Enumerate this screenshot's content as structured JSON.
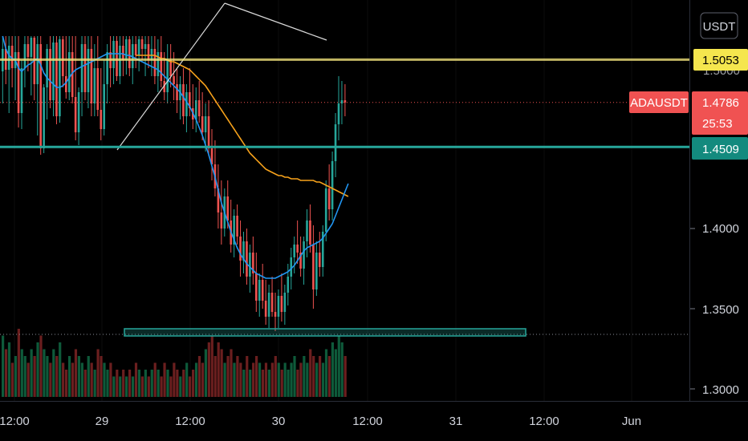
{
  "header": {
    "currency_button": "USDT"
  },
  "symbol": {
    "ticker": "ADAUSDT",
    "last_price": "1.4786",
    "countdown": "25:53"
  },
  "levels": {
    "resistance": "1.5053",
    "support": "1.4509",
    "partial_top_label": "1.5000"
  },
  "price_axis": {
    "ticks": [
      "1.4000",
      "1.3500",
      "1.3000"
    ]
  },
  "time_axis": {
    "ticks": [
      "12:00",
      "29",
      "12:00",
      "30",
      "12:00",
      "31",
      "12:00",
      "Jun"
    ]
  },
  "colors": {
    "up": "#26a69a",
    "down": "#ef5350",
    "ma_fast": "#2196f3",
    "ma_slow": "#f7a21b",
    "resistance_line": "#f0e27a",
    "support_line": "#26a69a",
    "trendline": "#d9d9d9",
    "last_price_tag": "#f05252"
  },
  "chart_data": {
    "type": "candlestick",
    "symbol": "ADAUSDT",
    "y_range": [
      1.29,
      1.53
    ],
    "price_ticks": [
      1.4,
      1.35,
      1.3
    ],
    "horizontal_levels": [
      1.5053,
      1.4509,
      1.334
    ],
    "last_price": 1.4786,
    "candles": [
      [
        1.498,
        1.52,
        1.478,
        1.512
      ],
      [
        1.512,
        1.52,
        1.49,
        1.499
      ],
      [
        1.499,
        1.52,
        1.472,
        1.514
      ],
      [
        1.514,
        1.52,
        1.488,
        1.5
      ],
      [
        1.5,
        1.52,
        1.48,
        1.51
      ],
      [
        1.51,
        1.52,
        1.463,
        1.472
      ],
      [
        1.472,
        1.505,
        1.462,
        1.5
      ],
      [
        1.5,
        1.52,
        1.488,
        1.515
      ],
      [
        1.515,
        1.52,
        1.498,
        1.507
      ],
      [
        1.507,
        1.52,
        1.483,
        1.519
      ],
      [
        1.519,
        1.52,
        1.48,
        1.49
      ],
      [
        1.49,
        1.52,
        1.458,
        1.515
      ],
      [
        1.515,
        1.52,
        1.446,
        1.45
      ],
      [
        1.45,
        1.49,
        1.447,
        1.488
      ],
      [
        1.488,
        1.515,
        1.468,
        1.512
      ],
      [
        1.512,
        1.52,
        1.475,
        1.48
      ],
      [
        1.48,
        1.52,
        1.47,
        1.516
      ],
      [
        1.516,
        1.52,
        1.465,
        1.47
      ],
      [
        1.47,
        1.52,
        1.466,
        1.518
      ],
      [
        1.518,
        1.52,
        1.488,
        1.495
      ],
      [
        1.495,
        1.52,
        1.481,
        1.485
      ],
      [
        1.485,
        1.52,
        1.48,
        1.51
      ],
      [
        1.51,
        1.52,
        1.478,
        1.482
      ],
      [
        1.482,
        1.52,
        1.455,
        1.46
      ],
      [
        1.46,
        1.488,
        1.452,
        1.485
      ],
      [
        1.485,
        1.52,
        1.47,
        1.515
      ],
      [
        1.515,
        1.52,
        1.48,
        1.485
      ],
      [
        1.485,
        1.52,
        1.475,
        1.512
      ],
      [
        1.512,
        1.52,
        1.47,
        1.478
      ],
      [
        1.478,
        1.515,
        1.47,
        1.5
      ],
      [
        1.5,
        1.52,
        1.47,
        1.474
      ],
      [
        1.474,
        1.5,
        1.455,
        1.462
      ],
      [
        1.462,
        1.505,
        1.458,
        1.49
      ],
      [
        1.49,
        1.515,
        1.478,
        1.51
      ],
      [
        1.51,
        1.52,
        1.488,
        1.5
      ],
      [
        1.5,
        1.52,
        1.49,
        1.517
      ],
      [
        1.517,
        1.52,
        1.492,
        1.495
      ],
      [
        1.495,
        1.52,
        1.49,
        1.514
      ],
      [
        1.514,
        1.52,
        1.495,
        1.505
      ],
      [
        1.505,
        1.52,
        1.496,
        1.518
      ],
      [
        1.518,
        1.52,
        1.495,
        1.5
      ],
      [
        1.5,
        1.52,
        1.49,
        1.515
      ],
      [
        1.515,
        1.52,
        1.5,
        1.508
      ],
      [
        1.508,
        1.52,
        1.498,
        1.518
      ],
      [
        1.518,
        1.52,
        1.505,
        1.512
      ],
      [
        1.512,
        1.52,
        1.495,
        1.515
      ],
      [
        1.515,
        1.52,
        1.5,
        1.505
      ],
      [
        1.505,
        1.52,
        1.495,
        1.512
      ],
      [
        1.512,
        1.52,
        1.49,
        1.495
      ],
      [
        1.495,
        1.518,
        1.485,
        1.51
      ],
      [
        1.51,
        1.52,
        1.488,
        1.492
      ],
      [
        1.492,
        1.51,
        1.48,
        1.485
      ],
      [
        1.485,
        1.515,
        1.478,
        1.505
      ],
      [
        1.505,
        1.515,
        1.488,
        1.495
      ],
      [
        1.495,
        1.51,
        1.48,
        1.49
      ],
      [
        1.49,
        1.5,
        1.472,
        1.48
      ],
      [
        1.48,
        1.495,
        1.468,
        1.49
      ],
      [
        1.49,
        1.5,
        1.465,
        1.47
      ],
      [
        1.47,
        1.49,
        1.46,
        1.485
      ],
      [
        1.485,
        1.5,
        1.47,
        1.475
      ],
      [
        1.475,
        1.49,
        1.462,
        1.468
      ],
      [
        1.468,
        1.488,
        1.46,
        1.48
      ],
      [
        1.48,
        1.492,
        1.466,
        1.47
      ],
      [
        1.47,
        1.485,
        1.455,
        1.46
      ],
      [
        1.46,
        1.478,
        1.448,
        1.47
      ],
      [
        1.47,
        1.48,
        1.445,
        1.45
      ],
      [
        1.45,
        1.462,
        1.43,
        1.44
      ],
      [
        1.44,
        1.455,
        1.42,
        1.425
      ],
      [
        1.425,
        1.44,
        1.4,
        1.41
      ],
      [
        1.41,
        1.43,
        1.39,
        1.4
      ],
      [
        1.4,
        1.425,
        1.395,
        1.42
      ],
      [
        1.42,
        1.43,
        1.4,
        1.405
      ],
      [
        1.405,
        1.418,
        1.385,
        1.39
      ],
      [
        1.39,
        1.412,
        1.382,
        1.408
      ],
      [
        1.408,
        1.415,
        1.39,
        1.395
      ],
      [
        1.395,
        1.405,
        1.37,
        1.38
      ],
      [
        1.38,
        1.398,
        1.372,
        1.392
      ],
      [
        1.392,
        1.4,
        1.365,
        1.37
      ],
      [
        1.37,
        1.39,
        1.36,
        1.385
      ],
      [
        1.385,
        1.395,
        1.365,
        1.372
      ],
      [
        1.372,
        1.385,
        1.348,
        1.355
      ],
      [
        1.355,
        1.372,
        1.345,
        1.368
      ],
      [
        1.368,
        1.378,
        1.35,
        1.355
      ],
      [
        1.355,
        1.368,
        1.34,
        1.345
      ],
      [
        1.345,
        1.365,
        1.338,
        1.36
      ],
      [
        1.36,
        1.37,
        1.345,
        1.348
      ],
      [
        1.348,
        1.36,
        1.336,
        1.345
      ],
      [
        1.345,
        1.362,
        1.338,
        1.358
      ],
      [
        1.358,
        1.372,
        1.342,
        1.348
      ],
      [
        1.348,
        1.365,
        1.34,
        1.36
      ],
      [
        1.36,
        1.378,
        1.352,
        1.37
      ],
      [
        1.37,
        1.388,
        1.362,
        1.382
      ],
      [
        1.382,
        1.395,
        1.372,
        1.39
      ],
      [
        1.39,
        1.405,
        1.378,
        1.385
      ],
      [
        1.385,
        1.395,
        1.37,
        1.375
      ],
      [
        1.375,
        1.395,
        1.365,
        1.392
      ],
      [
        1.392,
        1.412,
        1.382,
        1.405
      ],
      [
        1.405,
        1.415,
        1.385,
        1.39
      ],
      [
        1.39,
        1.402,
        1.35,
        1.362
      ],
      [
        1.362,
        1.392,
        1.358,
        1.385
      ],
      [
        1.385,
        1.398,
        1.37,
        1.376
      ],
      [
        1.376,
        1.402,
        1.37,
        1.398
      ],
      [
        1.398,
        1.43,
        1.392,
        1.425
      ],
      [
        1.425,
        1.44,
        1.405,
        1.412
      ],
      [
        1.412,
        1.448,
        1.405,
        1.442
      ],
      [
        1.442,
        1.472,
        1.432,
        1.465
      ],
      [
        1.465,
        1.495,
        1.455,
        1.478
      ],
      [
        1.478,
        1.492,
        1.465,
        1.48
      ],
      [
        1.48,
        1.49,
        1.47,
        1.4786
      ]
    ],
    "ma_fast": [
      1.52,
      1.512,
      1.508,
      1.506,
      1.505,
      1.5,
      1.498,
      1.5,
      1.502,
      1.503,
      1.505,
      1.506,
      1.502,
      1.497,
      1.494,
      1.492,
      1.49,
      1.488,
      1.488,
      1.489,
      1.491,
      1.494,
      1.497,
      1.499,
      1.5,
      1.501,
      1.502,
      1.503,
      1.504,
      1.505,
      1.506,
      1.507,
      1.508,
      1.509,
      1.509,
      1.509,
      1.509,
      1.509,
      1.509,
      1.508,
      1.508,
      1.507,
      1.506,
      1.505,
      1.504,
      1.503,
      1.502,
      1.501,
      1.5,
      1.499,
      1.497,
      1.495,
      1.493,
      1.491,
      1.489,
      1.487,
      1.485,
      1.482,
      1.479,
      1.476,
      1.472,
      1.468,
      1.463,
      1.458,
      1.452,
      1.446,
      1.439,
      1.432,
      1.424,
      1.416,
      1.41,
      1.404,
      1.398,
      1.393,
      1.388,
      1.384,
      1.381,
      1.378,
      1.376,
      1.374,
      1.372,
      1.371,
      1.37,
      1.369,
      1.369,
      1.369,
      1.369,
      1.37,
      1.371,
      1.372,
      1.373,
      1.375,
      1.377,
      1.38,
      1.383,
      1.386,
      1.388,
      1.389,
      1.39,
      1.391,
      1.392,
      1.394,
      1.397,
      1.4,
      1.403,
      1.408,
      1.413,
      1.418,
      1.423,
      1.428
    ],
    "ma_slow": [
      null,
      null,
      null,
      null,
      null,
      null,
      null,
      null,
      null,
      null,
      null,
      null,
      null,
      null,
      null,
      null,
      null,
      null,
      null,
      null,
      null,
      null,
      null,
      null,
      null,
      null,
      null,
      null,
      null,
      null,
      null,
      null,
      null,
      null,
      null,
      null,
      null,
      null,
      null,
      null,
      null,
      null,
      1.508,
      1.508,
      1.508,
      1.508,
      1.508,
      1.508,
      1.508,
      1.507,
      1.506,
      1.506,
      1.505,
      1.504,
      1.504,
      1.503,
      1.502,
      1.501,
      1.5,
      1.499,
      1.497,
      1.495,
      1.493,
      1.491,
      1.489,
      1.486,
      1.483,
      1.48,
      1.477,
      1.474,
      1.471,
      1.468,
      1.465,
      1.462,
      1.459,
      1.456,
      1.453,
      1.45,
      1.447,
      1.445,
      1.443,
      1.441,
      1.439,
      1.437,
      1.436,
      1.435,
      1.434,
      1.433,
      1.433,
      1.432,
      1.432,
      1.431,
      1.431,
      1.431,
      1.43,
      1.43,
      1.43,
      1.43,
      1.43,
      1.429,
      1.429,
      1.428,
      1.427,
      1.426,
      1.425,
      1.424,
      1.423,
      1.422,
      1.421,
      1.42
    ],
    "volume": [
      0.9,
      0.7,
      0.8,
      0.5,
      0.6,
      1.0,
      0.7,
      0.6,
      0.5,
      0.7,
      0.6,
      0.8,
      0.9,
      0.7,
      0.6,
      0.5,
      0.7,
      0.6,
      0.8,
      0.5,
      0.4,
      0.6,
      0.5,
      0.7,
      0.6,
      0.5,
      0.4,
      0.6,
      0.5,
      0.4,
      0.7,
      0.6,
      0.5,
      0.4,
      0.5,
      0.3,
      0.4,
      0.3,
      0.4,
      0.3,
      0.4,
      0.3,
      0.5,
      0.4,
      0.3,
      0.4,
      0.3,
      0.4,
      0.5,
      0.4,
      0.3,
      0.5,
      0.4,
      0.3,
      0.5,
      0.4,
      0.3,
      0.4,
      0.5,
      0.3,
      0.4,
      0.5,
      0.6,
      0.5,
      0.7,
      0.8,
      0.9,
      0.6,
      0.8,
      0.7,
      0.5,
      0.6,
      0.7,
      0.5,
      0.6,
      0.5,
      0.4,
      0.6,
      0.4,
      0.5,
      0.6,
      0.5,
      0.4,
      0.5,
      0.4,
      0.5,
      0.6,
      0.5,
      0.4,
      0.5,
      0.4,
      0.5,
      0.6,
      0.4,
      0.5,
      0.6,
      0.5,
      0.7,
      0.6,
      0.5,
      0.6,
      0.5,
      0.7,
      0.6,
      0.8,
      0.7,
      0.9,
      0.8,
      0.6
    ],
    "time_ticks": [
      "12:00",
      "29",
      "12:00",
      "30",
      "12:00",
      "31",
      "12:00",
      "Jun"
    ]
  }
}
